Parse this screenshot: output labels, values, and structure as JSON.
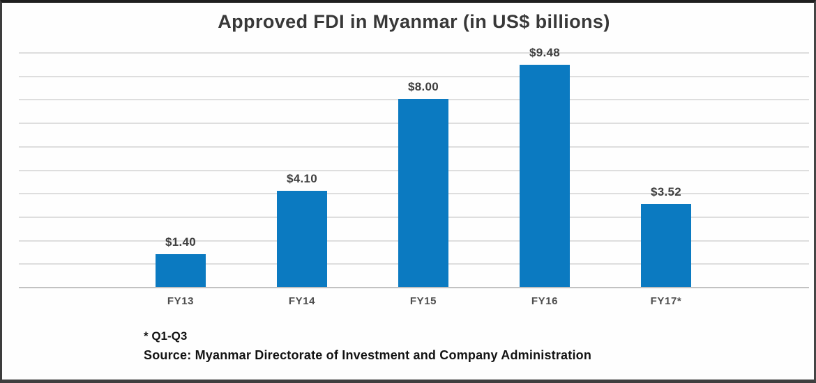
{
  "chart_data": {
    "type": "bar",
    "title": "Approved FDI in Myanmar (in US$ billions)",
    "categories": [
      "FY13",
      "FY14",
      "FY15",
      "FY16",
      "FY17*"
    ],
    "values": [
      1.4,
      4.1,
      8.0,
      9.48,
      3.52
    ],
    "data_labels": [
      "$1.40",
      "$4.10",
      "$8.00",
      "$9.48",
      "$3.52"
    ],
    "xlabel": "",
    "ylabel": "",
    "ylim": [
      0,
      10
    ],
    "gridline_step": 1,
    "grid": true,
    "legend_position": "none",
    "bar_color": "#0b7ac1"
  },
  "footnotes": {
    "asterisk_note": "* Q1-Q3",
    "source_line": "Source: Myanmar Directorate of Investment and Company Administration"
  },
  "colors": {
    "bar": "#0b7ac1",
    "gridline": "#dedede",
    "axis_line": "#c2c2c2",
    "title_text": "#383838",
    "data_label_text": "#3f3f3f",
    "category_text": "#4e4e4e",
    "footnote_text": "#121212",
    "frame_border": "#3d3d3d",
    "background": "#fefefe"
  }
}
